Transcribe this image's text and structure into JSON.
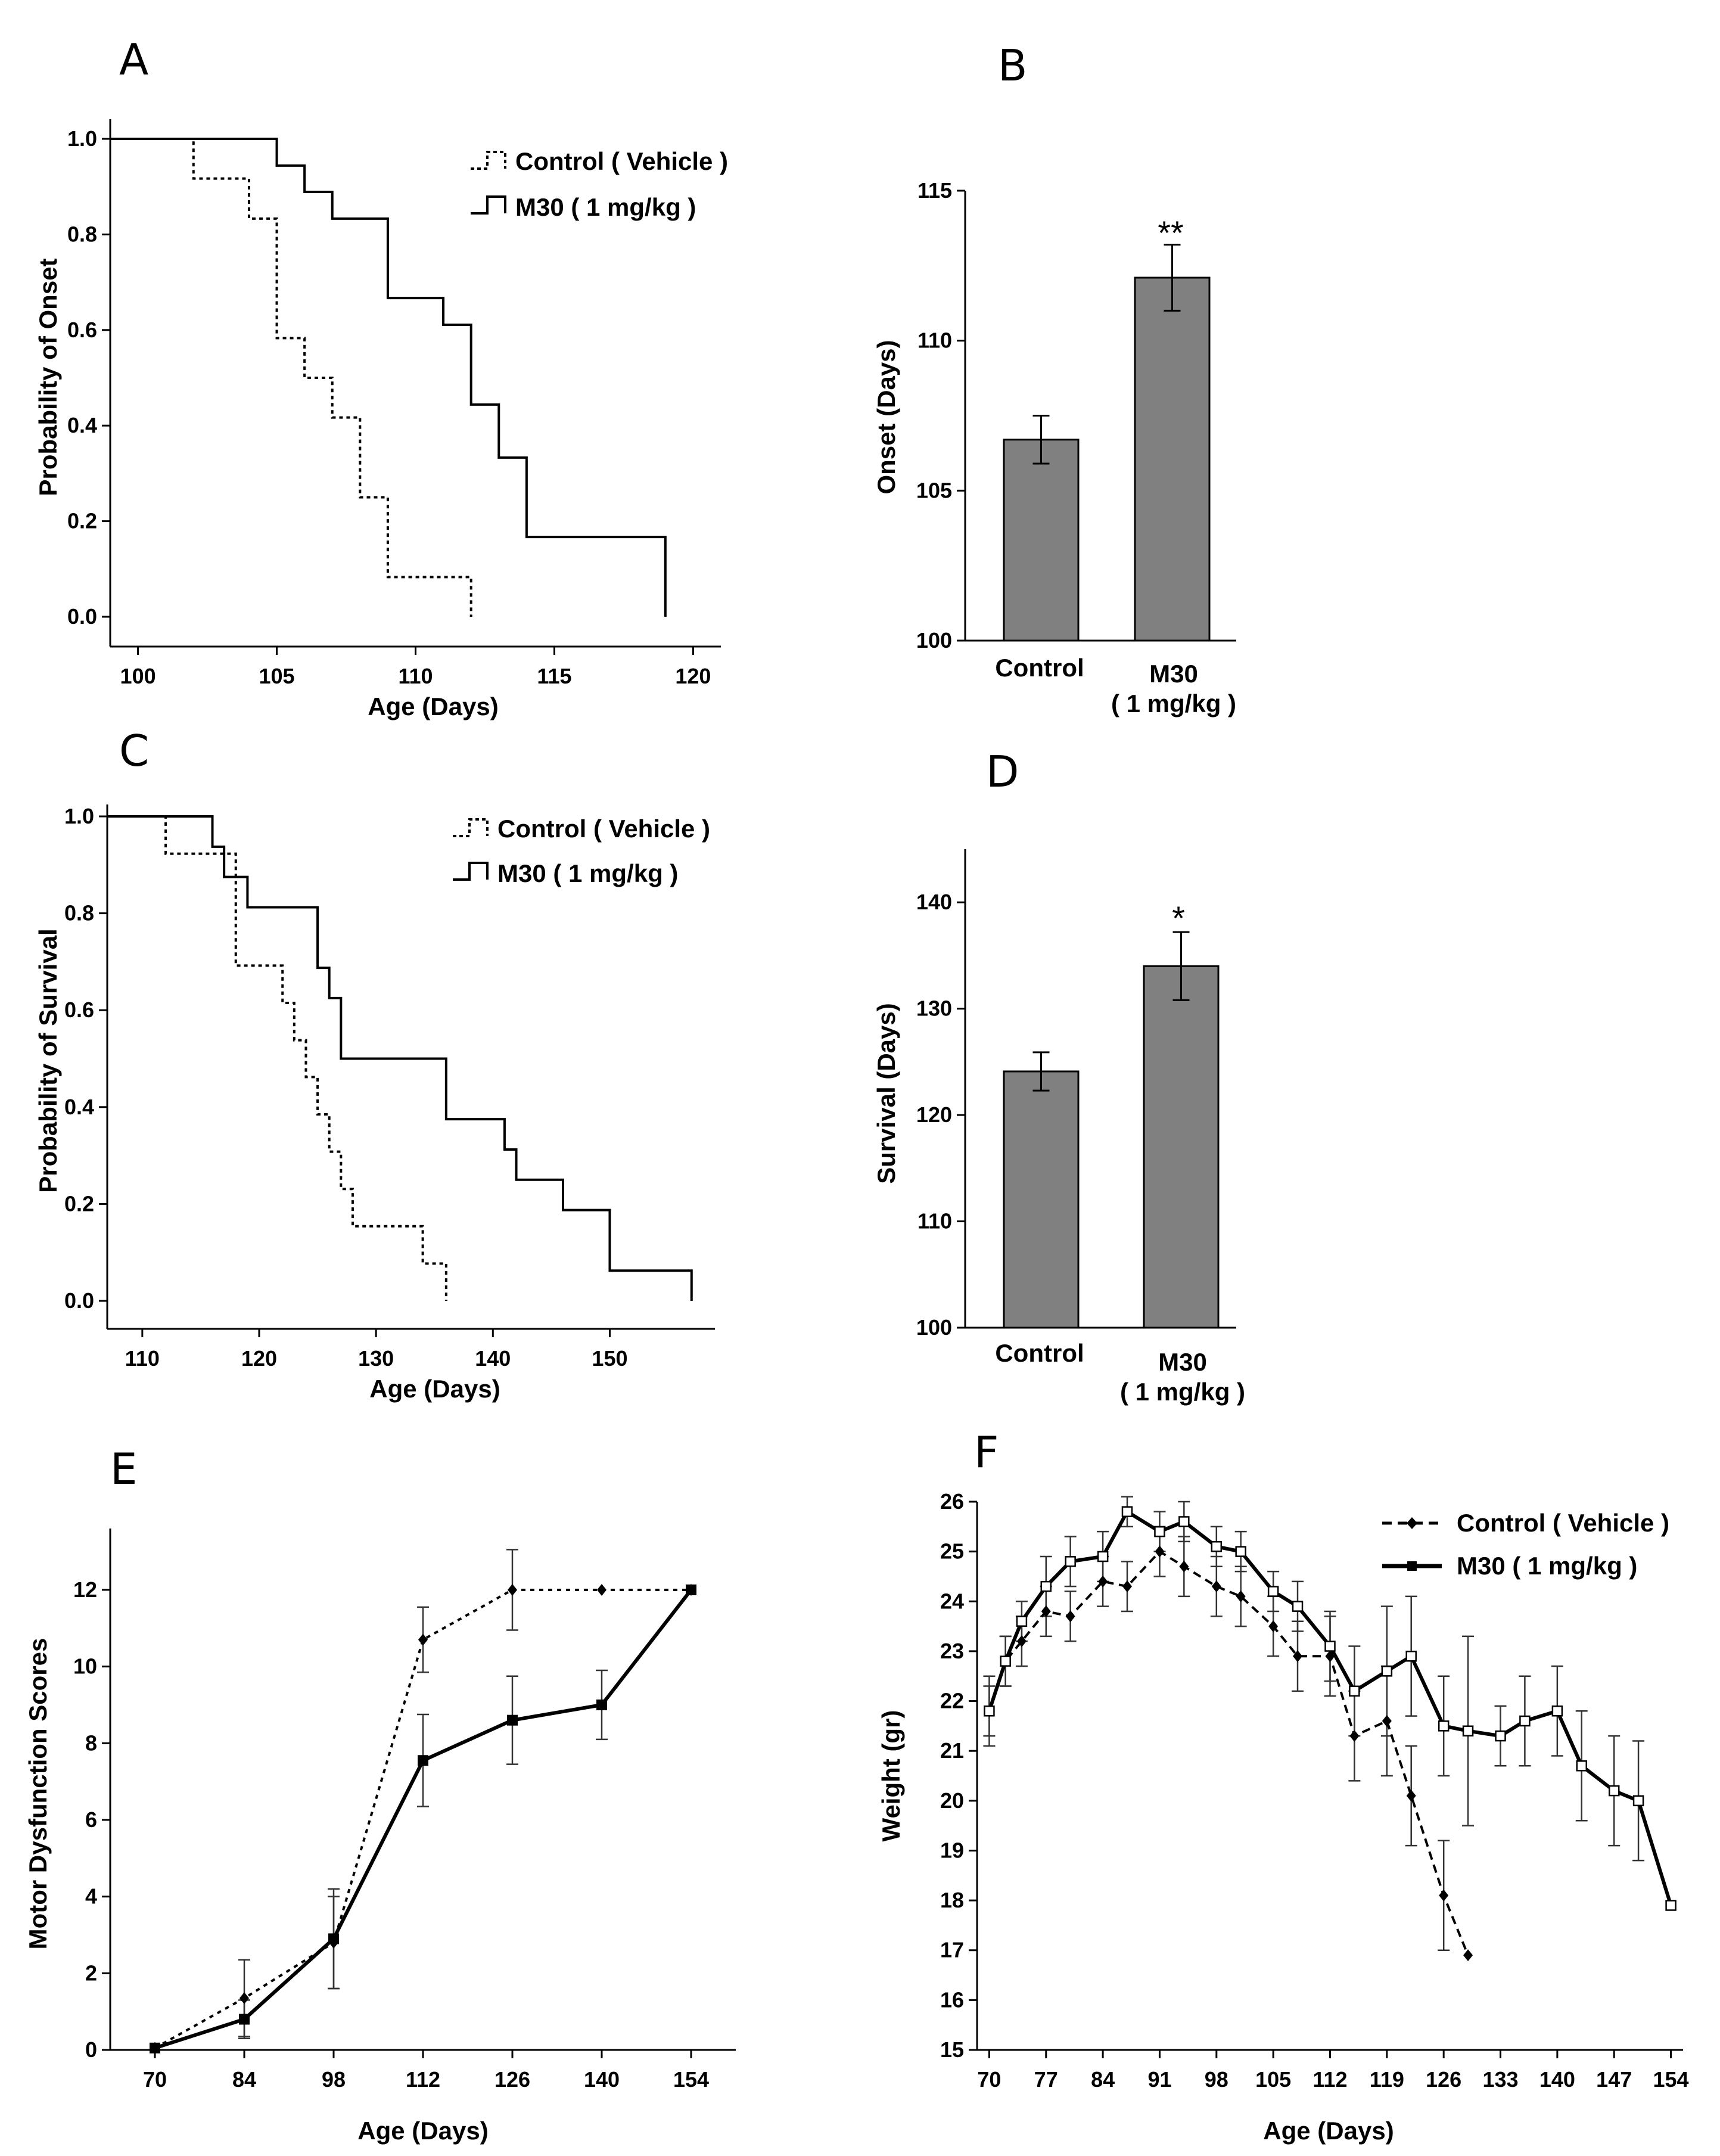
{
  "chart_data": [
    {
      "panel": "A",
      "type": "line",
      "subtype": "kaplan-meier-step",
      "xlabel": "Age (Days)",
      "ylabel": "Probability of Onset",
      "xlim": [
        99,
        121
      ],
      "ylim": [
        0,
        1
      ],
      "xticks": [
        100,
        105,
        110,
        115,
        120
      ],
      "yticks": [
        "0.0",
        "0.2",
        "0.4",
        "0.6",
        "0.8",
        "1.0"
      ],
      "legend": [
        "Control ( Vehicle )",
        "M30 ( 1 mg/kg )"
      ],
      "legend_position": "top-right",
      "series": [
        {
          "name": "Control ( Vehicle )",
          "style": "dotted",
          "x": [
            99,
            102,
            104,
            105,
            106,
            107,
            108,
            109,
            112,
            112
          ],
          "y": [
            1.0,
            0.917,
            0.833,
            0.583,
            0.5,
            0.417,
            0.25,
            0.083,
            0.083,
            0.0
          ]
        },
        {
          "name": "M30 ( 1 mg/kg )",
          "style": "solid",
          "x": [
            99,
            105,
            106,
            107,
            109,
            111,
            112,
            113,
            114,
            119,
            119
          ],
          "y": [
            1.0,
            0.944,
            0.889,
            0.833,
            0.667,
            0.611,
            0.444,
            0.333,
            0.167,
            0.167,
            0.0
          ]
        }
      ]
    },
    {
      "panel": "B",
      "type": "bar",
      "ylabel": "Onset  (Days)",
      "ylim": [
        100,
        115
      ],
      "yticks": [
        100,
        105,
        110,
        115
      ],
      "categories": [
        "Control",
        "M30"
      ],
      "category_sublabels": [
        "",
        "( 1 mg/kg )"
      ],
      "values": [
        106.7,
        112.1
      ],
      "errors": [
        0.8,
        1.1
      ],
      "annotations": [
        "",
        "**"
      ],
      "bar_color": "#808080"
    },
    {
      "panel": "C",
      "type": "line",
      "subtype": "kaplan-meier-step",
      "xlabel": "Age (Days)",
      "ylabel": "Probability of Survival",
      "xlim": [
        107,
        159
      ],
      "ylim": [
        0,
        1
      ],
      "xticks": [
        110,
        120,
        130,
        140,
        150
      ],
      "yticks": [
        "0.0",
        "0.2",
        "0.4",
        "0.6",
        "0.8",
        "1.0"
      ],
      "legend": [
        "Control ( Vehicle )",
        "M30 ( 1 mg/kg )"
      ],
      "legend_position": "top-right",
      "series": [
        {
          "name": "Control ( Vehicle )",
          "style": "dotted",
          "x": [
            107,
            112,
            118,
            122,
            123,
            124,
            125,
            126,
            127,
            128,
            134,
            136,
            136
          ],
          "y": [
            1.0,
            0.923,
            0.692,
            0.615,
            0.538,
            0.462,
            0.385,
            0.308,
            0.231,
            0.154,
            0.077,
            0.077,
            0.0
          ]
        },
        {
          "name": "M30 ( 1 mg/kg )",
          "style": "solid",
          "x": [
            107,
            116,
            117,
            118,
            119,
            125,
            126,
            127,
            136,
            141,
            142,
            146,
            150,
            157,
            157
          ],
          "y": [
            1.0,
            0.9375,
            0.875,
            0.875,
            0.8125,
            0.6875,
            0.625,
            0.5,
            0.375,
            0.3125,
            0.25,
            0.1875,
            0.0625,
            0.0625,
            0.0
          ]
        }
      ]
    },
    {
      "panel": "D",
      "type": "bar",
      "ylabel": "Survival (Days)",
      "ylim": [
        100,
        145
      ],
      "yticks": [
        100,
        110,
        120,
        130,
        140
      ],
      "categories": [
        "Control",
        "M30"
      ],
      "category_sublabels": [
        "",
        "( 1 mg/kg )"
      ],
      "values": [
        124.1,
        134.0
      ],
      "errors": [
        1.8,
        3.2
      ],
      "annotations": [
        "",
        "*"
      ],
      "bar_color": "#808080"
    },
    {
      "panel": "E",
      "type": "line",
      "xlabel": "Age (Days)",
      "ylabel": "Motor Dysfunction Scores",
      "xlim": [
        63,
        161
      ],
      "ylim": [
        0,
        13.6
      ],
      "xticks": [
        70,
        84,
        98,
        112,
        126,
        140,
        154
      ],
      "yticks": [
        0,
        2,
        4,
        6,
        8,
        10,
        12
      ],
      "series": [
        {
          "name": "Control ( Vehicle )",
          "style": "dotted",
          "marker": "diamond",
          "x": [
            70,
            84,
            98,
            112,
            126,
            140,
            154
          ],
          "y": [
            0.05,
            1.35,
            2.8,
            10.7,
            12.0,
            12.0,
            12.0
          ],
          "err": [
            0,
            1.0,
            1.2,
            0.85,
            1.05,
            0,
            0
          ]
        },
        {
          "name": "M30 ( 1 mg/kg )",
          "style": "solid",
          "marker": "square",
          "x": [
            70,
            84,
            98,
            112,
            126,
            140,
            154
          ],
          "y": [
            0.05,
            0.8,
            2.9,
            7.55,
            8.6,
            9.0,
            12.0
          ],
          "err": [
            0,
            0.5,
            1.3,
            1.2,
            1.15,
            0.9,
            0
          ]
        }
      ]
    },
    {
      "panel": "F",
      "type": "line",
      "xlabel": "Age (Days)",
      "ylabel": "Weight (gr)",
      "xlim": [
        68.5,
        155.5
      ],
      "ylim": [
        15,
        26
      ],
      "xticks": [
        70,
        77,
        84,
        91,
        98,
        105,
        112,
        119,
        126,
        133,
        140,
        147,
        154
      ],
      "yticks": [
        15,
        16,
        17,
        18,
        19,
        20,
        21,
        22,
        23,
        24,
        25,
        26
      ],
      "legend": [
        "Control ( Vehicle )",
        "M30 ( 1 mg/kg )"
      ],
      "legend_position": "top-right",
      "series": [
        {
          "name": "Control ( Vehicle )",
          "style": "dashed",
          "marker": "diamond",
          "x": [
            70,
            72,
            74,
            77,
            80,
            84,
            87,
            91,
            94,
            98,
            101,
            105,
            108,
            112,
            115,
            119,
            122,
            126,
            129
          ],
          "y": [
            21.8,
            22.8,
            23.2,
            23.8,
            23.7,
            24.4,
            24.3,
            25.0,
            24.7,
            24.3,
            24.1,
            23.5,
            22.9,
            22.9,
            21.3,
            21.6,
            20.1,
            18.1,
            16.9
          ],
          "err": [
            0.5,
            0.5,
            0.5,
            0.5,
            0.5,
            0.5,
            0.5,
            0.5,
            0.6,
            0.6,
            0.6,
            0.6,
            0.7,
            0.8,
            0.9,
            1.1,
            1.0,
            1.1,
            0
          ]
        },
        {
          "name": "M30 ( 1 mg/kg )",
          "style": "solid",
          "marker": "open-square",
          "x": [
            70,
            72,
            74,
            77,
            80,
            84,
            87,
            91,
            94,
            98,
            101,
            105,
            108,
            112,
            115,
            119,
            122,
            126,
            129,
            133,
            136,
            140,
            143,
            147,
            150,
            154
          ],
          "y": [
            21.8,
            22.8,
            23.6,
            24.3,
            24.8,
            24.9,
            25.8,
            25.4,
            25.6,
            25.1,
            25.0,
            24.2,
            23.9,
            23.1,
            22.2,
            22.6,
            22.9,
            21.5,
            21.4,
            21.3,
            21.6,
            21.8,
            20.7,
            20.2,
            20.0,
            17.9
          ],
          "err": [
            0.7,
            0.5,
            0.4,
            0.6,
            0.5,
            0.5,
            0.3,
            0.4,
            0.4,
            0.4,
            0.4,
            0.4,
            0.5,
            0.7,
            0.9,
            1.3,
            1.2,
            1.0,
            1.9,
            0.6,
            0.9,
            0.9,
            1.1,
            1.1,
            1.2,
            0
          ]
        }
      ]
    }
  ]
}
